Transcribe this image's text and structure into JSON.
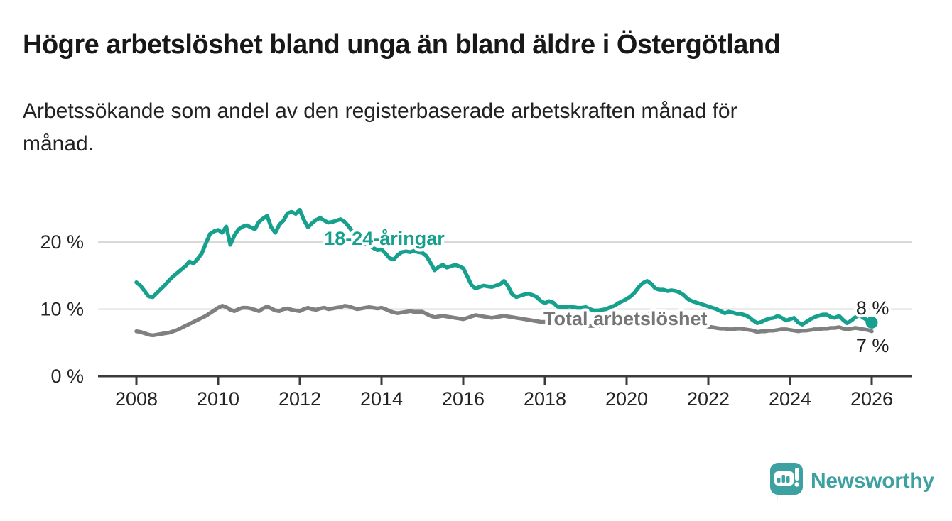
{
  "title": "Högre arbetslöshet bland unga än bland äldre i Östergötland",
  "subtitle_lines": [
    "Arbetssökande som andel av den registerbaserade arbetskraften månad för",
    "månad."
  ],
  "branding": {
    "logo_text": "Newsworthy"
  },
  "colors": {
    "accent_teal": "#17a08e",
    "total_gray": "#808080",
    "label_gray": "#757575",
    "axis": "#3a3a3a",
    "grid": "#d9d9d9",
    "tick_text": "#242424",
    "value_text": "#1f1f1f",
    "logo_teal": "#3da1a2"
  },
  "chart_data": {
    "type": "line",
    "title": "Högre arbetslöshet bland unga än bland äldre i Östergötland",
    "subtitle": "Arbetssökande som andel av den registerbaserade arbetskraften månad för månad.",
    "unit": "%",
    "x_axis": {
      "ticks": [
        2008,
        2010,
        2012,
        2014,
        2016,
        2018,
        2020,
        2022,
        2024,
        2026
      ],
      "range": [
        2007.1,
        2027.0
      ]
    },
    "y_axis": {
      "ticks": [
        {
          "value": 0,
          "label": "0 %"
        },
        {
          "value": 10,
          "label": "10 %"
        },
        {
          "value": 20,
          "label": "20 %"
        }
      ],
      "gridlines": [
        10,
        20
      ],
      "range": [
        0,
        26
      ],
      "legend_position": "inline-labels"
    },
    "series": [
      {
        "id": "total",
        "name": "Total arbetslöshet",
        "color": "#808080",
        "end_dot": false,
        "latest_value_label": "7 %",
        "x_start": 2008.0,
        "x_step": 0.1,
        "values": [
          6.7,
          6.6,
          6.4,
          6.2,
          6.1,
          6.2,
          6.3,
          6.4,
          6.5,
          6.7,
          6.9,
          7.2,
          7.5,
          7.8,
          8.1,
          8.4,
          8.7,
          9.0,
          9.4,
          9.8,
          10.2,
          10.5,
          10.3,
          9.9,
          9.7,
          10.0,
          10.2,
          10.2,
          10.1,
          9.9,
          9.7,
          10.1,
          10.4,
          10.1,
          9.8,
          9.7,
          10.0,
          10.1,
          9.9,
          9.8,
          9.7,
          10.0,
          10.2,
          10.0,
          9.9,
          10.1,
          10.2,
          10.0,
          10.1,
          10.2,
          10.3,
          10.5,
          10.4,
          10.2,
          10.0,
          10.1,
          10.2,
          10.3,
          10.2,
          10.1,
          10.2,
          10.0,
          9.7,
          9.5,
          9.4,
          9.5,
          9.6,
          9.7,
          9.6,
          9.6,
          9.6,
          9.3,
          9.0,
          8.8,
          8.9,
          9.0,
          8.9,
          8.8,
          8.7,
          8.6,
          8.5,
          8.7,
          8.9,
          9.1,
          9.0,
          8.9,
          8.8,
          8.7,
          8.8,
          8.9,
          9.0,
          8.9,
          8.8,
          8.7,
          8.6,
          8.5,
          8.4,
          8.3,
          8.2,
          8.1,
          8.1,
          8.0,
          7.9,
          7.9,
          7.8,
          7.8,
          7.7,
          7.7,
          7.6,
          7.6,
          7.6,
          7.5,
          7.5,
          7.5,
          7.5,
          7.6,
          7.6,
          7.7,
          7.8,
          7.9,
          8.1,
          8.4,
          8.7,
          9.0,
          9.2,
          9.3,
          9.2,
          9.1,
          9.0,
          8.9,
          8.8,
          8.7,
          8.6,
          8.4,
          8.2,
          8.0,
          7.9,
          7.8,
          7.7,
          7.5,
          7.4,
          7.3,
          7.2,
          7.1,
          7.1,
          7.0,
          7.0,
          7.1,
          7.1,
          7.0,
          6.9,
          6.8,
          6.6,
          6.7,
          6.7,
          6.8,
          6.8,
          6.9,
          7.0,
          7.0,
          6.9,
          6.8,
          6.7,
          6.8,
          6.8,
          6.9,
          7.0,
          7.0,
          7.1,
          7.1,
          7.2,
          7.2,
          7.3,
          7.1,
          7.0,
          7.1,
          7.2,
          7.1,
          7.0,
          6.9,
          6.7
        ]
      },
      {
        "id": "youth",
        "name": "18-24-åringar",
        "color": "#17a08e",
        "end_dot": true,
        "latest_value_label": "8 %",
        "x_start": 2008.0,
        "x_step": 0.1,
        "values": [
          14.0,
          13.5,
          12.7,
          11.9,
          11.8,
          12.4,
          13.0,
          13.6,
          14.3,
          14.9,
          15.4,
          15.9,
          16.4,
          17.1,
          16.8,
          17.5,
          18.3,
          19.8,
          21.2,
          21.6,
          21.8,
          21.4,
          22.3,
          19.6,
          21.0,
          21.9,
          22.3,
          22.5,
          22.2,
          21.9,
          23.0,
          23.5,
          23.9,
          22.2,
          21.4,
          22.6,
          23.2,
          24.3,
          24.5,
          24.2,
          24.8,
          23.3,
          22.2,
          22.8,
          23.3,
          23.6,
          23.2,
          22.9,
          23.0,
          23.2,
          23.4,
          23.0,
          22.3,
          21.5,
          20.8,
          20.3,
          19.8,
          19.5,
          19.1,
          18.8,
          18.9,
          18.3,
          17.6,
          17.4,
          18.1,
          18.5,
          18.6,
          18.5,
          18.7,
          18.5,
          18.4,
          17.9,
          16.9,
          15.8,
          16.3,
          16.6,
          16.2,
          16.4,
          16.6,
          16.4,
          16.1,
          14.9,
          13.6,
          13.1,
          13.3,
          13.5,
          13.4,
          13.3,
          13.5,
          13.7,
          14.2,
          13.4,
          12.2,
          11.8,
          12.0,
          12.2,
          12.3,
          12.1,
          11.8,
          11.2,
          10.9,
          11.2,
          11.0,
          10.4,
          10.3,
          10.3,
          10.4,
          10.3,
          10.2,
          10.2,
          10.3,
          10.0,
          9.8,
          9.8,
          9.9,
          10.0,
          10.3,
          10.5,
          10.9,
          11.2,
          11.5,
          11.9,
          12.5,
          13.3,
          13.9,
          14.2,
          13.8,
          13.1,
          12.9,
          12.9,
          12.7,
          12.8,
          12.7,
          12.5,
          12.1,
          11.5,
          11.2,
          11.0,
          10.8,
          10.6,
          10.4,
          10.2,
          10.0,
          9.7,
          9.4,
          9.6,
          9.5,
          9.3,
          9.3,
          9.1,
          8.8,
          8.3,
          7.9,
          8.1,
          8.4,
          8.6,
          8.7,
          9.0,
          8.7,
          8.3,
          8.5,
          8.7,
          8.0,
          7.7,
          8.1,
          8.5,
          8.8,
          9.0,
          9.2,
          9.2,
          8.8,
          8.7,
          9.0,
          8.4,
          7.9,
          8.3,
          8.8,
          9.1,
          8.7,
          8.3,
          8.0
        ]
      }
    ],
    "labels": [
      {
        "id": "label-youth-series",
        "text": "18-24-åringar",
        "x": 2014.07,
        "y": 19.6,
        "color": "#17a08e",
        "bold": true
      },
      {
        "id": "label-total-series",
        "text": "Total arbetslöshet",
        "x": 2019.97,
        "y": 7.6,
        "color": "#757575",
        "bold": true
      },
      {
        "id": "label-youth-latest",
        "text": "8 %",
        "x": 2026.02,
        "y": 9.2,
        "color": "#1f1f1f",
        "bold": false
      },
      {
        "id": "label-total-latest",
        "text": "7 %",
        "x": 2026.02,
        "y": 3.6,
        "color": "#1f1f1f",
        "bold": false
      }
    ]
  }
}
